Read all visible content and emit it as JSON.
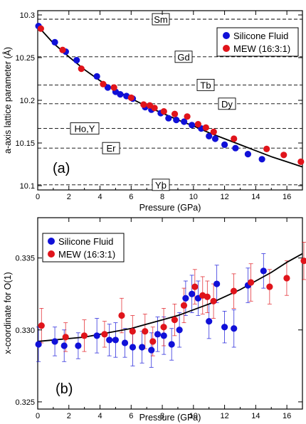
{
  "colors": {
    "silicone": "#1010d8",
    "mew": "#e0141b",
    "fit": "#000000",
    "ref_line": "#000000"
  },
  "chart_data": [
    {
      "type": "scatter",
      "panel_label": "(a)",
      "xlabel": "Pressure (GPa)",
      "ylabel": "a-axis lattice parameter (Å)",
      "xlim": [
        0,
        17
      ],
      "ylim": [
        10.095,
        10.305
      ],
      "x_ticks": [
        0,
        2,
        4,
        6,
        8,
        10,
        12,
        14,
        16
      ],
      "x_tick_labels": [
        "0",
        "2",
        "4",
        "6",
        "8",
        "10",
        "12",
        "14",
        "16"
      ],
      "y_ticks": [
        10.1,
        10.15,
        10.2,
        10.25,
        10.3
      ],
      "y_tick_labels": [
        "10.1",
        "10.15",
        "10.2",
        "10.25",
        "10.3"
      ],
      "grid": false,
      "legend_position": "top-right",
      "reference_lines": [
        {
          "label": "Sm",
          "y": 10.295
        },
        {
          "label": "Gd",
          "y": 10.251
        },
        {
          "label": "Tb",
          "y": 10.218
        },
        {
          "label": "Dy",
          "y": 10.196
        },
        {
          "label": "Ho,Y",
          "y": 10.167
        },
        {
          "label": "Er",
          "y": 10.144
        },
        {
          "label": "Yb",
          "y": 10.101
        }
      ],
      "fit_curve": {
        "x": [
          0,
          1,
          2,
          3,
          4,
          5,
          6,
          7,
          8,
          9,
          10,
          11,
          12,
          13,
          14,
          15,
          16,
          17
        ],
        "y": [
          10.287,
          10.267,
          10.251,
          10.236,
          10.223,
          10.212,
          10.202,
          10.193,
          10.185,
          10.177,
          10.17,
          10.162,
          10.155,
          10.148,
          10.141,
          10.134,
          10.128,
          10.122
        ]
      },
      "series": [
        {
          "name": "Silicone Fluid",
          "x": [
            0.05,
            1.1,
            1.8,
            2.5,
            3.8,
            4.5,
            5.0,
            5.3,
            5.7,
            6.1,
            6.9,
            7.3,
            7.9,
            8.4,
            8.9,
            9.4,
            9.9,
            10.5,
            11.0,
            11.4,
            12.0,
            12.7,
            13.5,
            14.4
          ],
          "y": [
            10.287,
            10.268,
            10.257,
            10.247,
            10.228,
            10.215,
            10.21,
            10.207,
            10.205,
            10.202,
            10.192,
            10.189,
            10.185,
            10.179,
            10.177,
            10.175,
            10.171,
            10.167,
            10.158,
            10.155,
            10.148,
            10.144,
            10.137,
            10.131
          ]
        },
        {
          "name": "MEW (16:3:1)",
          "x": [
            0.2,
            1.6,
            2.8,
            4.2,
            4.9,
            6.0,
            6.8,
            7.2,
            7.5,
            8.1,
            8.8,
            9.6,
            10.3,
            10.8,
            11.3,
            12.6,
            14.7,
            15.8,
            16.9
          ],
          "y": [
            10.284,
            10.259,
            10.237,
            10.219,
            10.215,
            10.203,
            10.195,
            10.194,
            10.191,
            10.187,
            10.184,
            10.181,
            10.172,
            10.168,
            10.163,
            10.155,
            10.143,
            10.136,
            10.128
          ]
        }
      ]
    },
    {
      "type": "scatter",
      "panel_label": "(b)",
      "xlabel": "Pressure (GPa)",
      "ylabel": "x-coordinate for O(1)",
      "xlim": [
        0,
        17
      ],
      "ylim": [
        0.3245,
        0.3378
      ],
      "x_ticks": [
        0,
        2,
        4,
        6,
        8,
        10,
        12,
        14,
        16
      ],
      "x_tick_labels": [
        "0",
        "2",
        "4",
        "6",
        "8",
        "10",
        "12",
        "14",
        "16"
      ],
      "y_ticks": [
        0.325,
        0.33,
        0.335
      ],
      "y_tick_labels": [
        "0.325",
        "0.330",
        "0.335"
      ],
      "grid": false,
      "legend_position": "top-left",
      "fit_curve": {
        "x": [
          0,
          1,
          2,
          3,
          4,
          5,
          6,
          7,
          8,
          9,
          10,
          11,
          12,
          13,
          14,
          15,
          16,
          17
        ],
        "y": [
          0.3292,
          0.3293,
          0.3294,
          0.3295,
          0.3297,
          0.3299,
          0.3301,
          0.3304,
          0.3307,
          0.331,
          0.3314,
          0.3318,
          0.3323,
          0.3328,
          0.3334,
          0.334,
          0.3347,
          0.3353
        ]
      },
      "series": [
        {
          "name": "Silicone Fluid",
          "x": [
            0.05,
            1.1,
            1.7,
            2.6,
            3.8,
            4.6,
            5.0,
            5.6,
            6.1,
            6.7,
            7.3,
            7.7,
            8.1,
            8.6,
            9.1,
            9.5,
            9.9,
            10.3,
            11.0,
            11.5,
            12.0,
            12.6,
            13.5,
            14.5
          ],
          "y": [
            0.329,
            0.3292,
            0.3289,
            0.3289,
            0.3296,
            0.3293,
            0.3293,
            0.3291,
            0.3288,
            0.3288,
            0.3286,
            0.3297,
            0.3296,
            0.329,
            0.33,
            0.3322,
            0.3325,
            0.3322,
            0.3306,
            0.3332,
            0.3302,
            0.3301,
            0.3331,
            0.3341
          ]
        },
        {
          "name": "MEW (16:3:1)",
          "x": [
            0.15,
            1.7,
            2.9,
            4.2,
            5.3,
            6.0,
            6.8,
            7.3,
            8.0,
            8.7,
            9.3,
            10.0,
            10.5,
            10.8,
            11.2,
            12.5,
            13.6,
            14.8,
            15.9,
            17.0
          ],
          "y": [
            0.3303,
            0.3295,
            0.3296,
            0.3297,
            0.331,
            0.3299,
            0.3299,
            0.3292,
            0.3302,
            0.3307,
            0.3317,
            0.333,
            0.3324,
            0.3323,
            0.332,
            0.3327,
            0.3333,
            0.333,
            0.3336,
            0.3348
          ]
        }
      ]
    }
  ]
}
